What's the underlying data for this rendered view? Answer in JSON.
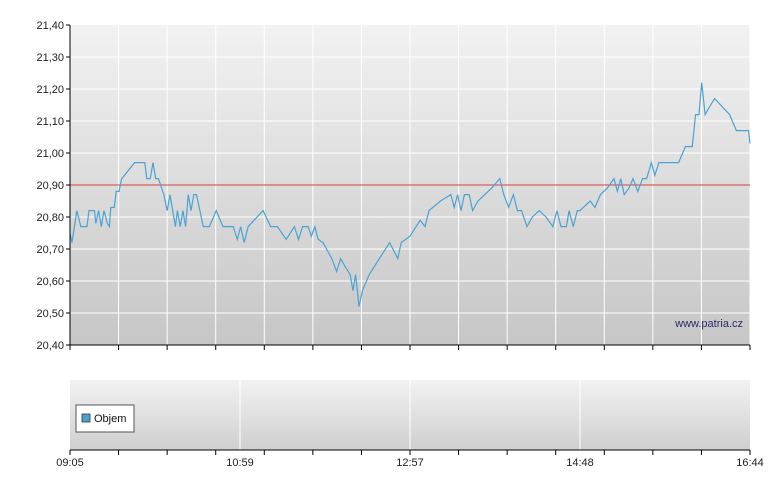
{
  "watermark": "www.patria.cz",
  "colors": {
    "price_line": "#4aa3d2",
    "reference_line": "#d64040",
    "grid": "#ffffff",
    "axis": "#000000",
    "plot_bg_top": "#f0f0f0",
    "plot_bg_bottom": "#c8c8c8",
    "legend_swatch": "#4aa3d2"
  },
  "chart_data": [
    {
      "type": "line",
      "title": "",
      "xlabel": "",
      "ylabel": "",
      "ylim": [
        20.4,
        21.4
      ],
      "y_ticks": [
        "21,40",
        "21,30",
        "21,20",
        "21,10",
        "21,00",
        "20,90",
        "20,80",
        "20,70",
        "20,60",
        "20,50",
        "20,40"
      ],
      "reference_line": {
        "value": 20.9
      },
      "grid": true,
      "series": [
        {
          "points": [
            [
              0.0,
              20.75
            ],
            [
              0.003,
              20.72
            ],
            [
              0.01,
              20.82
            ],
            [
              0.016,
              20.77
            ],
            [
              0.025,
              20.77
            ],
            [
              0.028,
              20.82
            ],
            [
              0.036,
              20.82
            ],
            [
              0.038,
              20.78
            ],
            [
              0.042,
              20.82
            ],
            [
              0.046,
              20.77
            ],
            [
              0.05,
              20.82
            ],
            [
              0.055,
              20.78
            ],
            [
              0.058,
              20.77
            ],
            [
              0.06,
              20.83
            ],
            [
              0.065,
              20.83
            ],
            [
              0.068,
              20.88
            ],
            [
              0.072,
              20.88
            ],
            [
              0.076,
              20.92
            ],
            [
              0.08,
              20.93
            ],
            [
              0.095,
              20.97
            ],
            [
              0.11,
              20.97
            ],
            [
              0.113,
              20.92
            ],
            [
              0.118,
              20.92
            ],
            [
              0.122,
              20.97
            ],
            [
              0.126,
              20.92
            ],
            [
              0.13,
              20.92
            ],
            [
              0.138,
              20.87
            ],
            [
              0.143,
              20.82
            ],
            [
              0.147,
              20.87
            ],
            [
              0.151,
              20.82
            ],
            [
              0.155,
              20.77
            ],
            [
              0.158,
              20.82
            ],
            [
              0.162,
              20.77
            ],
            [
              0.166,
              20.82
            ],
            [
              0.17,
              20.77
            ],
            [
              0.174,
              20.87
            ],
            [
              0.178,
              20.82
            ],
            [
              0.182,
              20.87
            ],
            [
              0.186,
              20.87
            ],
            [
              0.196,
              20.77
            ],
            [
              0.205,
              20.77
            ],
            [
              0.215,
              20.82
            ],
            [
              0.225,
              20.77
            ],
            [
              0.24,
              20.77
            ],
            [
              0.246,
              20.73
            ],
            [
              0.251,
              20.77
            ],
            [
              0.256,
              20.72
            ],
            [
              0.262,
              20.77
            ],
            [
              0.275,
              20.8
            ],
            [
              0.284,
              20.82
            ],
            [
              0.295,
              20.77
            ],
            [
              0.305,
              20.77
            ],
            [
              0.318,
              20.73
            ],
            [
              0.33,
              20.77
            ],
            [
              0.336,
              20.73
            ],
            [
              0.342,
              20.77
            ],
            [
              0.35,
              20.77
            ],
            [
              0.355,
              20.74
            ],
            [
              0.36,
              20.77
            ],
            [
              0.365,
              20.73
            ],
            [
              0.372,
              20.72
            ],
            [
              0.385,
              20.67
            ],
            [
              0.392,
              20.63
            ],
            [
              0.398,
              20.67
            ],
            [
              0.406,
              20.64
            ],
            [
              0.412,
              20.62
            ],
            [
              0.416,
              20.57
            ],
            [
              0.42,
              20.62
            ],
            [
              0.425,
              20.52
            ],
            [
              0.43,
              20.57
            ],
            [
              0.44,
              20.62
            ],
            [
              0.455,
              20.67
            ],
            [
              0.47,
              20.72
            ],
            [
              0.482,
              20.67
            ],
            [
              0.487,
              20.72
            ],
            [
              0.5,
              20.74
            ],
            [
              0.515,
              20.79
            ],
            [
              0.522,
              20.77
            ],
            [
              0.528,
              20.82
            ],
            [
              0.545,
              20.85
            ],
            [
              0.56,
              20.87
            ],
            [
              0.565,
              20.83
            ],
            [
              0.57,
              20.87
            ],
            [
              0.575,
              20.82
            ],
            [
              0.58,
              20.87
            ],
            [
              0.587,
              20.87
            ],
            [
              0.592,
              20.82
            ],
            [
              0.6,
              20.85
            ],
            [
              0.61,
              20.87
            ],
            [
              0.62,
              20.89
            ],
            [
              0.632,
              20.92
            ],
            [
              0.638,
              20.87
            ],
            [
              0.645,
              20.83
            ],
            [
              0.652,
              20.87
            ],
            [
              0.658,
              20.82
            ],
            [
              0.664,
              20.82
            ],
            [
              0.672,
              20.77
            ],
            [
              0.68,
              20.8
            ],
            [
              0.69,
              20.82
            ],
            [
              0.7,
              20.8
            ],
            [
              0.71,
              20.77
            ],
            [
              0.716,
              20.82
            ],
            [
              0.722,
              20.77
            ],
            [
              0.73,
              20.77
            ],
            [
              0.734,
              20.82
            ],
            [
              0.74,
              20.77
            ],
            [
              0.746,
              20.82
            ],
            [
              0.75,
              20.82
            ],
            [
              0.765,
              20.85
            ],
            [
              0.772,
              20.83
            ],
            [
              0.78,
              20.87
            ],
            [
              0.79,
              20.89
            ],
            [
              0.8,
              20.92
            ],
            [
              0.805,
              20.88
            ],
            [
              0.81,
              20.92
            ],
            [
              0.815,
              20.87
            ],
            [
              0.822,
              20.89
            ],
            [
              0.828,
              20.92
            ],
            [
              0.835,
              20.88
            ],
            [
              0.842,
              20.92
            ],
            [
              0.848,
              20.92
            ],
            [
              0.855,
              20.97
            ],
            [
              0.86,
              20.93
            ],
            [
              0.866,
              20.97
            ],
            [
              0.88,
              20.97
            ],
            [
              0.895,
              20.97
            ],
            [
              0.905,
              21.02
            ],
            [
              0.915,
              21.02
            ],
            [
              0.92,
              21.12
            ],
            [
              0.925,
              21.12
            ],
            [
              0.929,
              21.22
            ],
            [
              0.934,
              21.12
            ],
            [
              0.942,
              21.15
            ],
            [
              0.948,
              21.17
            ],
            [
              0.97,
              21.12
            ],
            [
              0.98,
              21.07
            ],
            [
              0.998,
              21.07
            ],
            [
              1.0,
              21.03
            ]
          ]
        }
      ]
    },
    {
      "type": "bar",
      "title": "",
      "series": [
        {
          "name": "Objem",
          "values": []
        }
      ],
      "x_ticks": [
        "09:05",
        "10:59",
        "12:57",
        "14:48",
        "16:44"
      ],
      "legend": {
        "placement": "bottom-left"
      }
    }
  ]
}
